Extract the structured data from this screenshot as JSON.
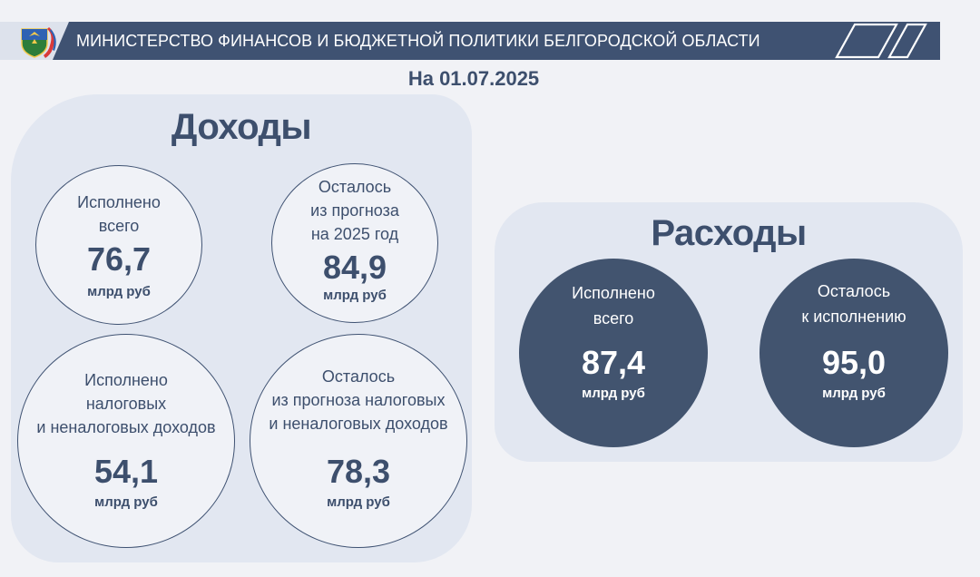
{
  "header": {
    "title": "МИНИСТЕРСТВО ФИНАНСОВ И БЮДЖЕТНОЙ ПОЛИТИКИ БЕЛГОРОДСКОЙ ОБЛАСТИ",
    "emblem_icon": "belgorod-coat-of-arms-icon",
    "deco_icon": "slanted-parallelogram-icon"
  },
  "date": "На 01.07.2025",
  "income": {
    "title": "Доходы",
    "circles": [
      {
        "lines": [
          "Исполнено",
          "всего"
        ],
        "value": "76,7",
        "unit": "млрд руб"
      },
      {
        "lines": [
          "Осталось",
          "из прогноза",
          "на 2025 год"
        ],
        "value": "84,9",
        "unit": "млрд руб"
      },
      {
        "lines": [
          "Исполнено",
          "налоговых",
          "и неналоговых доходов"
        ],
        "value": "54,1",
        "unit": "млрд руб"
      },
      {
        "lines": [
          "Осталось",
          "из прогноза налоговых",
          "и неналоговых доходов"
        ],
        "value": "78,3",
        "unit": "млрд руб"
      }
    ]
  },
  "expense": {
    "title": "Расходы",
    "circles": [
      {
        "lines": [
          "Исполнено",
          "всего"
        ],
        "value": "87,4",
        "unit": "млрд руб"
      },
      {
        "lines": [
          "Осталось",
          "к исполнению"
        ],
        "value": "95,0",
        "unit": "млрд руб"
      }
    ]
  },
  "colors": {
    "navy": "#3f5272",
    "panel": "#e2e7f1",
    "background": "#f1f2f6",
    "text": "#3d4f6d"
  }
}
